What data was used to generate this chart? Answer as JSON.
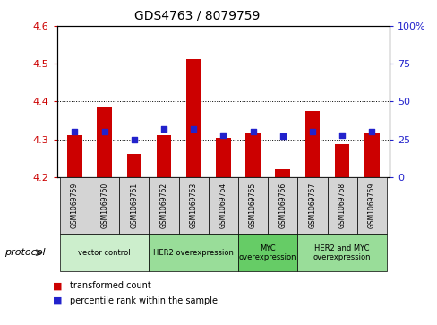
{
  "title": "GDS4763 / 8079759",
  "samples": [
    "GSM1069759",
    "GSM1069760",
    "GSM1069761",
    "GSM1069762",
    "GSM1069763",
    "GSM1069764",
    "GSM1069765",
    "GSM1069766",
    "GSM1069767",
    "GSM1069768",
    "GSM1069769"
  ],
  "bar_values": [
    4.31,
    4.385,
    4.262,
    4.31,
    4.513,
    4.305,
    4.315,
    4.222,
    4.375,
    4.287,
    4.315
  ],
  "percentile_values": [
    30,
    30,
    25,
    32,
    32,
    28,
    30,
    27,
    30,
    28,
    30
  ],
  "bar_color": "#cc0000",
  "dot_color": "#2222cc",
  "ylim_left": [
    4.2,
    4.6
  ],
  "ylim_right": [
    0,
    100
  ],
  "yticks_left": [
    4.2,
    4.3,
    4.4,
    4.5,
    4.6
  ],
  "yticks_right": [
    0,
    25,
    50,
    75,
    100
  ],
  "ytick_right_labels": [
    "0",
    "25",
    "50",
    "75",
    "100%"
  ],
  "ylabel_left_color": "#cc0000",
  "ylabel_right_color": "#2222cc",
  "groups": [
    {
      "label": "vector control",
      "start": 0,
      "end": 2,
      "color": "#cceecc"
    },
    {
      "label": "HER2 overexpression",
      "start": 3,
      "end": 5,
      "color": "#99dd99"
    },
    {
      "label": "MYC\noverexpression",
      "start": 6,
      "end": 7,
      "color": "#66cc66"
    },
    {
      "label": "HER2 and MYC\noverexpression",
      "start": 8,
      "end": 10,
      "color": "#99dd99"
    }
  ],
  "protocol_label": "protocol",
  "legend_bar_label": "transformed count",
  "legend_dot_label": "percentile rank within the sample",
  "bar_width": 0.5,
  "base_value": 4.2,
  "background_color": "#ffffff",
  "sample_box_color": "#d4d4d4",
  "figsize": [
    4.89,
    3.63
  ],
  "dpi": 100
}
